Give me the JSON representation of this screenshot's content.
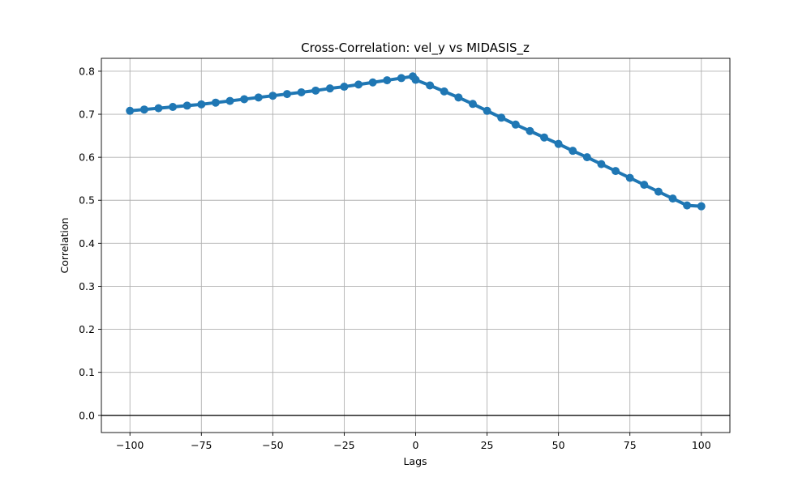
{
  "chart_data": {
    "type": "line",
    "title": "Cross-Correlation: vel_y vs MIDASIS_z",
    "xlabel": "Lags",
    "ylabel": "Correlation",
    "xlim": [
      -110,
      110
    ],
    "ylim": [
      -0.04,
      0.83
    ],
    "xticks": [
      -100,
      -75,
      -50,
      -25,
      0,
      25,
      50,
      75,
      100
    ],
    "xtick_labels": [
      "−100",
      "−75",
      "−50",
      "−25",
      "0",
      "25",
      "50",
      "75",
      "100"
    ],
    "yticks": [
      0.0,
      0.1,
      0.2,
      0.3,
      0.4,
      0.5,
      0.6,
      0.7,
      0.8
    ],
    "ytick_labels": [
      "0.0",
      "0.1",
      "0.2",
      "0.3",
      "0.4",
      "0.5",
      "0.6",
      "0.7",
      "0.8"
    ],
    "grid": true,
    "horizontal_line": 0,
    "series": [
      {
        "color": "#1f77b4",
        "marker": "circle",
        "x": [
          -100,
          -95,
          -90,
          -85,
          -80,
          -75,
          -70,
          -65,
          -60,
          -55,
          -50,
          -45,
          -40,
          -35,
          -30,
          -25,
          -20,
          -15,
          -10,
          -5,
          -1,
          0,
          5,
          10,
          15,
          20,
          25,
          30,
          35,
          40,
          45,
          50,
          55,
          60,
          65,
          70,
          75,
          80,
          85,
          90,
          95,
          100
        ],
        "y": [
          0.708,
          0.711,
          0.714,
          0.717,
          0.72,
          0.723,
          0.727,
          0.731,
          0.735,
          0.739,
          0.743,
          0.747,
          0.751,
          0.755,
          0.76,
          0.764,
          0.769,
          0.774,
          0.779,
          0.784,
          0.788,
          0.78,
          0.767,
          0.753,
          0.739,
          0.724,
          0.708,
          0.692,
          0.676,
          0.661,
          0.646,
          0.631,
          0.615,
          0.6,
          0.584,
          0.568,
          0.552,
          0.536,
          0.52,
          0.504,
          0.488,
          0.486
        ]
      }
    ]
  }
}
